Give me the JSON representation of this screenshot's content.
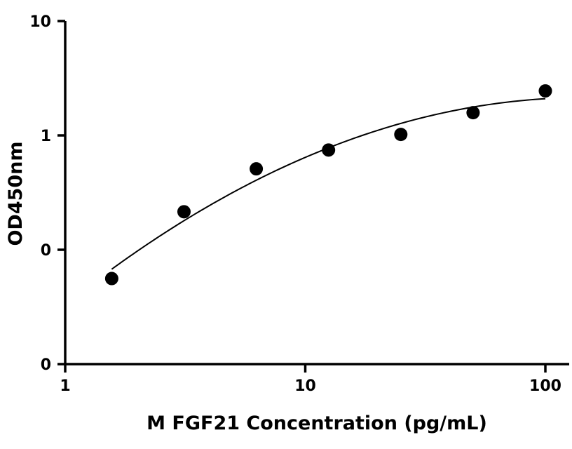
{
  "chart_data": {
    "type": "scatter",
    "title": "",
    "xlabel": "M FGF21 Concentration (pg/mL)",
    "ylabel": "OD450nm",
    "x_scale": "log",
    "y_scale": "log",
    "xlim": [
      1,
      120
    ],
    "ylim": [
      0.01,
      10
    ],
    "x_ticks": [
      {
        "value": 1,
        "label": "1"
      },
      {
        "value": 10,
        "label": "10"
      },
      {
        "value": 100,
        "label": "100"
      }
    ],
    "y_ticks": [
      {
        "value": 0.01,
        "label": "0"
      },
      {
        "value": 0.1,
        "label": "0"
      },
      {
        "value": 1,
        "label": "1"
      },
      {
        "value": 10,
        "label": "10"
      }
    ],
    "grid": false,
    "legend": "none",
    "colors": {
      "marker": "#000000",
      "curve": "#000000",
      "axis": "#000000"
    },
    "series": [
      {
        "x": [
          1.5625,
          3.125,
          6.25,
          12.5,
          25,
          50,
          100
        ],
        "y": [
          0.056,
          0.215,
          0.51,
          0.745,
          1.02,
          1.58,
          2.45
        ]
      }
    ],
    "fit_curve": true
  }
}
